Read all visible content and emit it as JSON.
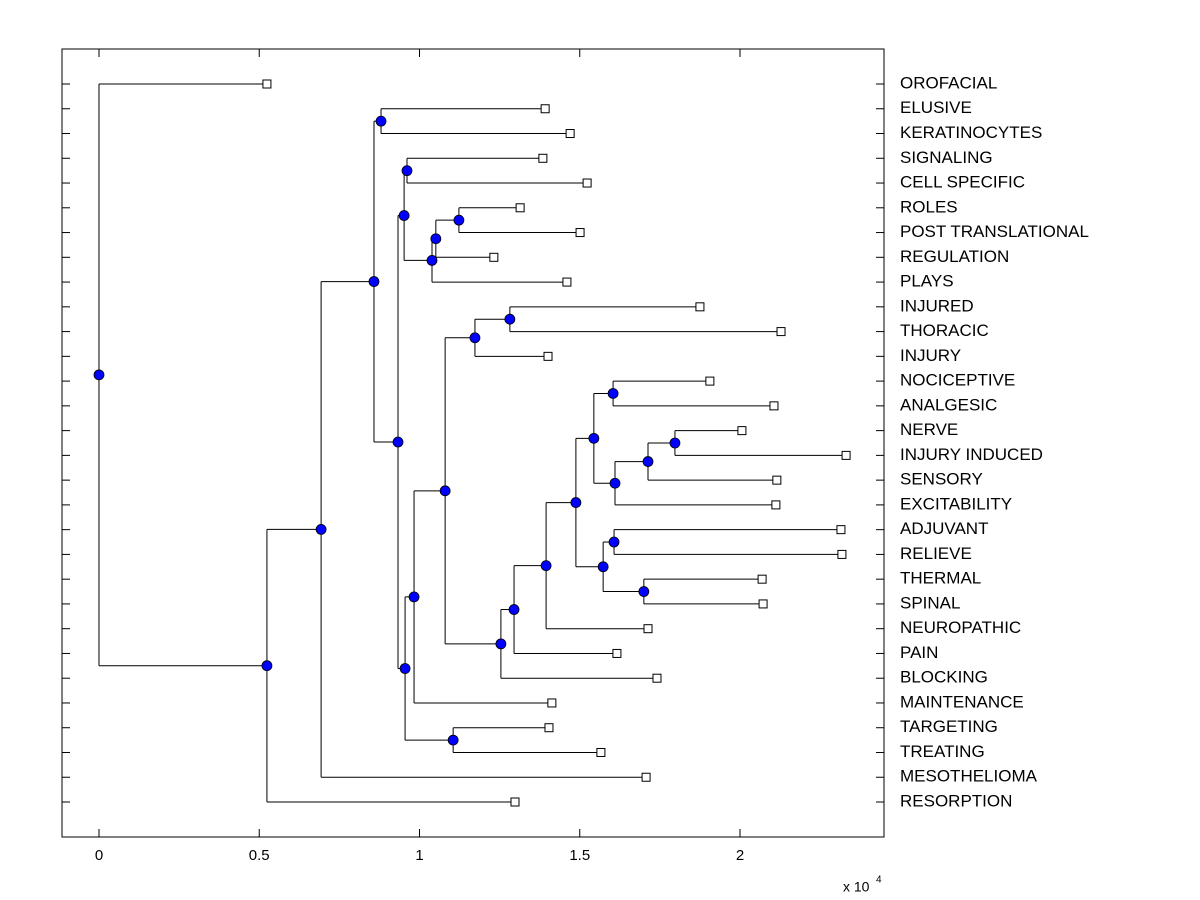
{
  "chart_data": {
    "type": "dendrogram",
    "xlim": [
      -0.1154,
      2.4493
    ],
    "xticks": [
      0,
      0.5,
      1,
      1.5,
      2
    ],
    "x_multiplier": "x 10",
    "x_multiplier_exponent": "4",
    "node_color": "#0000ff",
    "leaf_color": "#ffffff",
    "line_color": "#000000",
    "tree": {
      "height": 0,
      "children": [
        {
          "label": "OROFACIAL",
          "height": 0.524
        },
        {
          "height": 0.524,
          "children": [
            {
              "height": 0.693,
              "children": [
                {
                  "height": 0.858,
                  "children": [
                    {
                      "height": 0.88,
                      "children": [
                        {
                          "label": "ELUSIVE",
                          "height": 1.392
                        },
                        {
                          "label": "KERATINOCYTES",
                          "height": 1.47
                        }
                      ]
                    },
                    {
                      "height": 0.933,
                      "children": [
                        {
                          "height": 0.952,
                          "children": [
                            {
                              "height": 0.961,
                              "children": [
                                {
                                  "label": "SIGNALING",
                                  "height": 1.385
                                },
                                {
                                  "label": "CELL SPECIFIC",
                                  "height": 1.523
                                }
                              ]
                            },
                            {
                              "height": 1.039,
                              "children": [
                                {
                                  "height": 1.051,
                                  "children": [
                                    {
                                      "height": 1.123,
                                      "children": [
                                        {
                                          "label": "ROLES",
                                          "height": 1.314
                                        },
                                        {
                                          "label": "POST TRANSLATIONAL",
                                          "height": 1.501
                                        }
                                      ]
                                    },
                                    {
                                      "label": "REGULATION",
                                      "height": 1.232
                                    }
                                  ]
                                },
                                {
                                  "label": "PLAYS",
                                  "height": 1.46
                                }
                              ]
                            }
                          ]
                        },
                        {
                          "height": 0.955,
                          "children": [
                            {
                              "height": 0.983,
                              "children": [
                                {
                                  "height": 1.08,
                                  "children": [
                                    {
                                      "height": 1.173,
                                      "children": [
                                        {
                                          "height": 1.282,
                                          "children": [
                                            {
                                              "label": "INJURED",
                                              "height": 1.875
                                            },
                                            {
                                              "label": "THORACIC",
                                              "height": 2.128
                                            }
                                          ]
                                        },
                                        {
                                          "label": "INJURY",
                                          "height": 1.401
                                        }
                                      ]
                                    },
                                    {
                                      "height": 1.254,
                                      "children": [
                                        {
                                          "height": 1.295,
                                          "children": [
                                            {
                                              "height": 1.395,
                                              "children": [
                                                {
                                                  "height": 1.488,
                                                  "children": [
                                                    {
                                                      "height": 1.544,
                                                      "children": [
                                                        {
                                                          "height": 1.604,
                                                          "children": [
                                                            {
                                                              "label": "NOCICEPTIVE",
                                                              "height": 1.906
                                                            },
                                                            {
                                                              "label": "ANALGESIC",
                                                              "height": 2.106
                                                            }
                                                          ]
                                                        },
                                                        {
                                                          "height": 1.61,
                                                          "children": [
                                                            {
                                                              "height": 1.713,
                                                              "children": [
                                                                {
                                                                  "height": 1.797,
                                                                  "children": [
                                                                    {
                                                                      "label": "NERVE",
                                                                      "height": 2.006
                                                                    },
                                                                    {
                                                                      "label": "INJURY INDUCED",
                                                                      "height": 2.331
                                                                    }
                                                                  ]
                                                                },
                                                                {
                                                                  "label": "SENSORY",
                                                                  "height": 2.115
                                                                }
                                                              ]
                                                            },
                                                            {
                                                              "label": "EXCITABILITY",
                                                              "height": 2.112
                                                            }
                                                          ]
                                                        }
                                                      ]
                                                    },
                                                    {
                                                      "height": 1.573,
                                                      "children": [
                                                        {
                                                          "height": 1.607,
                                                          "children": [
                                                            {
                                                              "label": "ADJUVANT",
                                                              "height": 2.315
                                                            },
                                                            {
                                                              "label": "RELIEVE",
                                                              "height": 2.318
                                                            }
                                                          ]
                                                        },
                                                        {
                                                          "height": 1.7,
                                                          "children": [
                                                            {
                                                              "label": "THERMAL",
                                                              "height": 2.069
                                                            },
                                                            {
                                                              "label": "SPINAL",
                                                              "height": 2.072
                                                            }
                                                          ]
                                                        }
                                                      ]
                                                    }
                                                  ]
                                                },
                                                {
                                                  "label": "NEUROPATHIC",
                                                  "height": 1.713
                                                }
                                              ]
                                            },
                                            {
                                              "label": "PAIN",
                                              "height": 1.616
                                            }
                                          ]
                                        },
                                        {
                                          "label": "BLOCKING",
                                          "height": 1.741
                                        }
                                      ]
                                    }
                                  ]
                                },
                                {
                                  "label": "MAINTENANCE",
                                  "height": 1.413
                                }
                              ]
                            },
                            {
                              "height": 1.105,
                              "children": [
                                {
                                  "label": "TARGETING",
                                  "height": 1.404
                                },
                                {
                                  "label": "TREATING",
                                  "height": 1.566
                                }
                              ]
                            }
                          ]
                        }
                      ]
                    }
                  ]
                },
                {
                  "label": "MESOTHELIOMA",
                  "height": 1.707
                }
              ]
            },
            {
              "label": "RESORPTION",
              "height": 1.298
            }
          ]
        }
      ]
    }
  }
}
